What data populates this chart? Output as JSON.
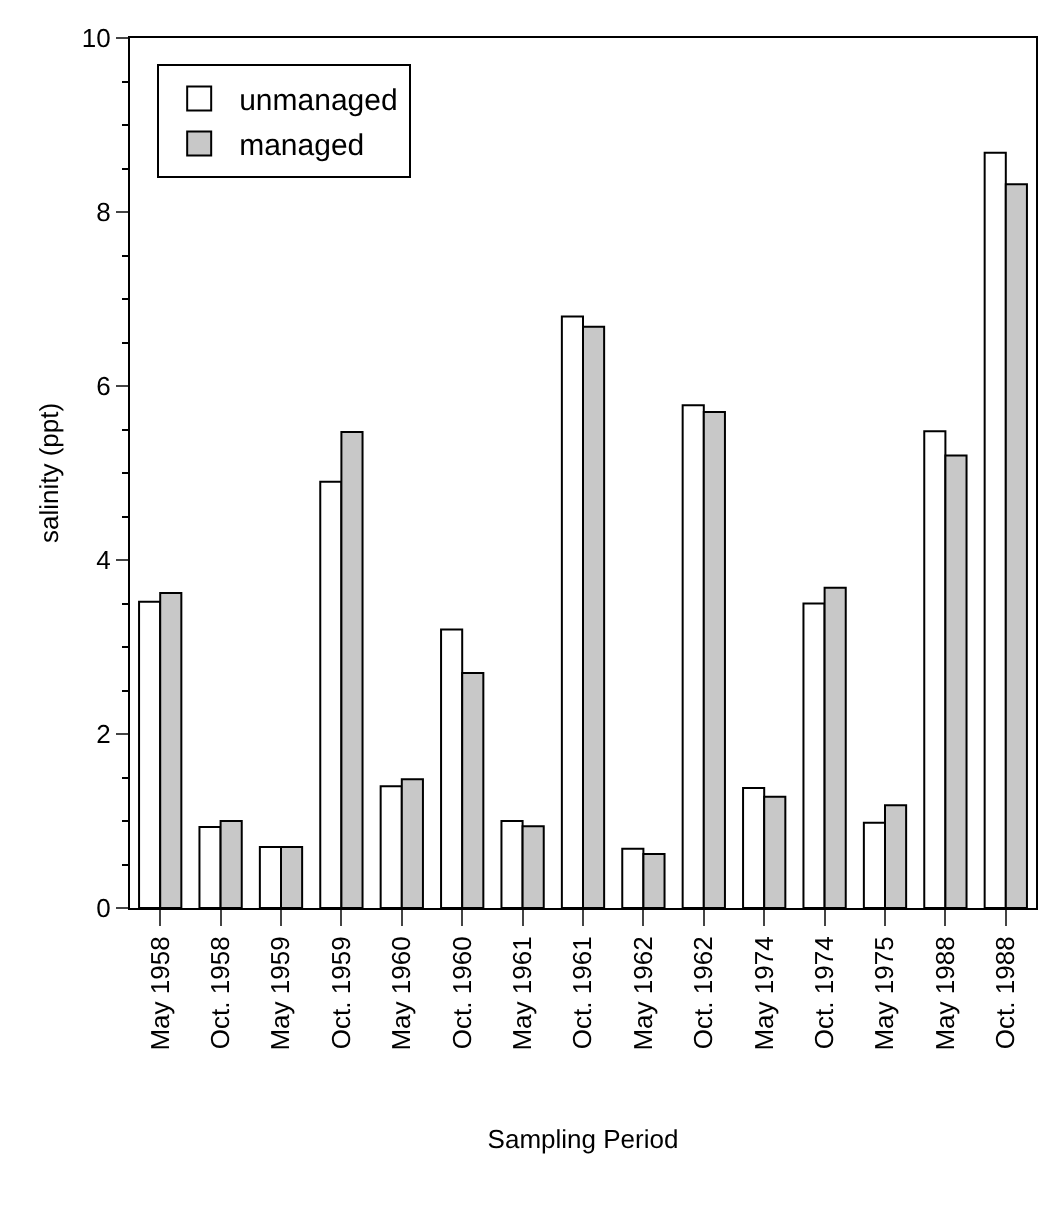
{
  "chart_data": {
    "type": "bar",
    "xlabel": "Sampling Period",
    "ylabel": "salinity (ppt)",
    "categories": [
      "May 1958",
      "Oct. 1958",
      "May 1959",
      "Oct. 1959",
      "May 1960",
      "Oct. 1960",
      "May 1961",
      "Oct. 1961",
      "May 1962",
      "Oct. 1962",
      "May 1974",
      "Oct. 1974",
      "May 1975",
      "May 1988",
      "Oct. 1988"
    ],
    "series": [
      {
        "name": "unmanaged",
        "color": "#ffffff",
        "values": [
          3.52,
          0.93,
          0.7,
          4.9,
          1.4,
          3.2,
          1.0,
          6.8,
          0.68,
          5.78,
          1.38,
          3.5,
          0.98,
          5.48,
          8.68
        ]
      },
      {
        "name": "managed",
        "color": "#c8c8c8",
        "values": [
          3.62,
          1.0,
          0.7,
          5.47,
          1.48,
          2.7,
          0.94,
          6.68,
          0.62,
          5.7,
          1.28,
          3.68,
          1.18,
          5.2,
          8.32
        ]
      }
    ],
    "ylim": [
      0,
      10
    ],
    "yticks": [
      0,
      2,
      4,
      6,
      8,
      10
    ],
    "grid": false,
    "legend": "top left"
  }
}
